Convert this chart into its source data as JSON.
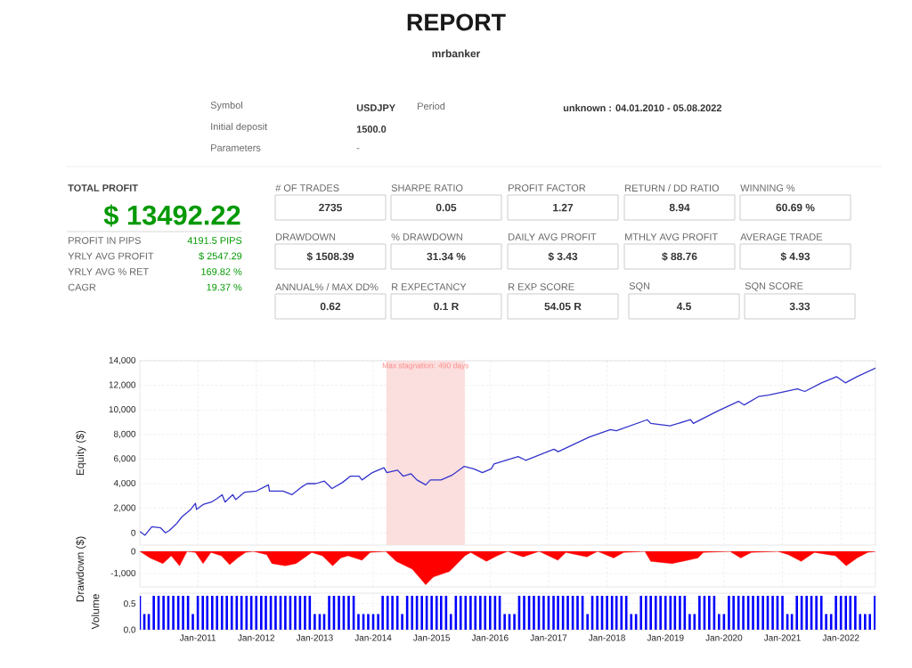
{
  "chart_data": [
    {
      "type": "other",
      "title": "REPORT",
      "subtitle": "mrbanker",
      "annotations": [
        "Symbol",
        "USDJPY",
        "Period",
        "unknown : 04.01.2010 - 05.08.2022",
        "Initial deposit",
        "1500.0",
        "Parameters",
        "-",
        "TOTAL PROFIT",
        "$ 13492.22",
        "PROFIT IN PIPS",
        "4191.5 PIPS",
        "YRLY AVG PROFIT",
        "$ 2547.29",
        "YRLY AVG % RET",
        "169.82 %",
        "CAGR",
        "19.37 %",
        "# OF TRADES",
        "2735",
        "SHARPE RATIO",
        "0.05",
        "PROFIT FACTOR",
        "1.27",
        "RETURN / DD RATIO",
        "8.94",
        "WINNING %",
        "60.69 %",
        "DRAWDOWN",
        "$ 1508.39",
        "% DRAWDOWN",
        "31.34 %",
        "DAILY AVG PROFIT",
        "$ 3.43",
        "MTHLY AVG PROFIT",
        "$ 88.76",
        "AVERAGE TRADE",
        "$ 4.93",
        "ANNUAL% / MAX DD%",
        "0.62",
        "R EXPECTANCY",
        "0.1 R",
        "R EXP SCORE",
        "54.05 R",
        "SQN",
        "4.5",
        "SQN SCORE",
        "3.33"
      ]
    },
    {
      "type": "line",
      "ylabel": "Equity ($)",
      "color": "#3333cc",
      "grid": true,
      "tick_labels": "y",
      "xlim": [
        "2010-01-04",
        "2022-08-05"
      ],
      "ylim": [
        -1000,
        14000
      ],
      "xticks": [
        {
          "value": "2011-01-01",
          "label": null
        },
        {
          "value": "2012-01-01",
          "label": null
        },
        {
          "value": "2013-01-01",
          "label": null
        },
        {
          "value": "2014-01-01",
          "label": null
        },
        {
          "value": "2015-01-01",
          "label": null
        },
        {
          "value": "2016-01-01",
          "label": null
        },
        {
          "value": "2017-01-01",
          "label": null
        },
        {
          "value": "2018-01-01",
          "label": null
        },
        {
          "value": "2019-01-01",
          "label": null
        },
        {
          "value": "2020-01-01",
          "label": null
        },
        {
          "value": "2021-01-01",
          "label": null
        },
        {
          "value": "2022-01-01",
          "label": null
        }
      ],
      "yticks": [
        0,
        {
          "value": 2000,
          "label": "2,000"
        },
        {
          "value": 4000,
          "label": "4,000"
        },
        {
          "value": 6000,
          "label": "6,000"
        },
        {
          "value": 8000,
          "label": "8,000"
        },
        {
          "value": 10000,
          "label": "10,000"
        },
        {
          "value": 12000,
          "label": "12,000"
        },
        {
          "value": 14000,
          "label": "14,000"
        }
      ],
      "bands": [
        {
          "axis": "x",
          "from": "2014-03-24",
          "to": "2015-07-27",
          "label": "Max stagnation: 490 days",
          "color": "#fbdede"
        }
      ],
      "x": [
        "2010-01-04",
        "2010-02-05",
        "2010-03-20",
        "2010-05-14",
        "2010-06-13",
        "2010-07-08",
        "2010-08-18",
        "2010-09-24",
        "2010-11-18",
        "2010-12-17",
        "2010-12-24",
        "2011-02-03",
        "2011-03-27",
        "2011-05-03",
        "2011-06-02",
        "2011-06-20",
        "2011-08-07",
        "2011-08-25",
        "2011-10-19",
        "2012-01-02",
        "2012-03-17",
        "2012-03-24",
        "2012-06-17",
        "2012-08-11",
        "2012-10-08",
        "2012-11-14",
        "2013-01-08",
        "2013-03-02",
        "2013-04-19",
        "2013-06-24",
        "2013-08-11",
        "2013-10-05",
        "2013-10-23",
        "2013-12-27",
        "2014-03-09",
        "2014-03-27",
        "2014-06-02",
        "2014-07-08",
        "2014-08-25",
        "2014-10-01",
        "2014-11-25",
        "2014-12-24",
        "2015-02-28",
        "2015-05-10",
        "2015-07-22",
        "2015-09-20",
        "2015-11-14",
        "2016-01-08",
        "2016-01-26",
        "2016-06-24",
        "2016-08-11",
        "2017-02-03",
        "2017-03-02",
        "2017-09-13",
        "2018-01-22",
        "2018-02-28",
        "2018-09-09",
        "2018-10-01",
        "2019-01-29",
        "2019-06-06",
        "2019-06-24",
        "2019-11-21",
        "2020-04-01",
        "2020-05-07",
        "2020-08-07",
        "2020-10-05",
        "2021-04-04",
        "2021-05-21",
        "2021-09-02",
        "2021-12-06",
        "2022-01-29",
        "2022-04-12",
        "2022-08-05"
      ],
      "values": [
        100,
        -200,
        500,
        400,
        0,
        200,
        700,
        1300,
        1900,
        2400,
        1900,
        2300,
        2500,
        2800,
        3100,
        2500,
        3100,
        2700,
        3300,
        3400,
        3900,
        3400,
        3400,
        3100,
        3700,
        4000,
        4000,
        4200,
        3600,
        4100,
        4600,
        4600,
        4300,
        4900,
        5300,
        4900,
        5100,
        4600,
        4800,
        4300,
        3900,
        4300,
        4300,
        4700,
        5400,
        5200,
        4900,
        5200,
        5600,
        6200,
        5900,
        6800,
        6600,
        7800,
        8400,
        8300,
        9200,
        8900,
        8700,
        9200,
        8900,
        9900,
        10700,
        10400,
        11100,
        11200,
        11700,
        11500,
        12200,
        12700,
        12200,
        12700,
        13400
      ]
    },
    {
      "type": "area",
      "ylabel": "Drawdown ($)",
      "color": "#ff0000",
      "grid": true,
      "tick_labels": "y",
      "xlim": [
        "2010-01-04",
        "2022-08-05"
      ],
      "ylim": [
        -1600,
        0
      ],
      "xticks": [
        {
          "value": "2011-01-01",
          "label": null
        },
        {
          "value": "2012-01-01",
          "label": null
        },
        {
          "value": "2013-01-01",
          "label": null
        },
        {
          "value": "2014-01-01",
          "label": null
        },
        {
          "value": "2015-01-01",
          "label": null
        },
        {
          "value": "2016-01-01",
          "label": null
        },
        {
          "value": "2017-01-01",
          "label": null
        },
        {
          "value": "2018-01-01",
          "label": null
        },
        {
          "value": "2019-01-01",
          "label": null
        },
        {
          "value": "2020-01-01",
          "label": null
        },
        {
          "value": "2021-01-01",
          "label": null
        },
        {
          "value": "2022-01-01",
          "label": null
        }
      ],
      "yticks": [
        {
          "value": -1000,
          "label": "-1,000"
        },
        0
      ],
      "x": [
        "2010-01-04",
        "2010-03-09",
        "2010-05-28",
        "2010-07-19",
        "2010-09-09",
        "2010-10-26",
        "2010-12-17",
        "2011-02-03",
        "2011-03-24",
        "2011-05-28",
        "2011-07-19",
        "2011-09-06",
        "2011-10-26",
        "2011-12-13",
        "2012-03-06",
        "2012-04-08",
        "2012-07-01",
        "2012-09-06",
        "2012-10-26",
        "2012-12-13",
        "2013-02-18",
        "2013-04-23",
        "2013-06-13",
        "2013-07-28",
        "2013-10-23",
        "2013-12-13",
        "2014-03-20",
        "2014-05-25",
        "2014-09-02",
        "2014-11-25",
        "2015-01-12",
        "2015-04-23",
        "2015-07-28",
        "2015-09-02",
        "2015-12-09",
        "2016-02-14",
        "2016-04-19",
        "2016-07-26",
        "2016-11-03",
        "2017-02-28",
        "2017-04-19",
        "2017-08-28",
        "2017-11-03",
        "2018-02-11",
        "2018-04-15",
        "2018-08-25",
        "2018-10-01",
        "2019-02-11",
        "2019-07-22",
        "2019-08-25",
        "2020-02-07",
        "2020-04-15",
        "2020-06-20",
        "2020-12-02",
        "2021-02-07",
        "2021-04-28",
        "2021-07-19",
        "2021-11-28",
        "2022-02-03",
        "2022-04-12",
        "2022-06-17",
        "2022-08-05"
      ],
      "values": [
        0,
        -300,
        -550,
        -200,
        -650,
        0,
        -50,
        -550,
        -50,
        -200,
        -600,
        -300,
        -50,
        0,
        -150,
        -550,
        -650,
        -550,
        -300,
        -50,
        -200,
        -650,
        -300,
        -200,
        -400,
        -50,
        0,
        -450,
        -800,
        -1500,
        -1150,
        -900,
        -200,
        -50,
        -450,
        -200,
        0,
        -250,
        0,
        -400,
        -50,
        -250,
        0,
        -300,
        -50,
        0,
        -450,
        -550,
        -300,
        -50,
        0,
        -300,
        -50,
        0,
        -150,
        -450,
        -50,
        -200,
        -650,
        -300,
        -50,
        0
      ]
    },
    {
      "type": "bar",
      "ylabel": "Volume",
      "color": "#0000ff",
      "grid": true,
      "xlim": [
        "2010-01-04",
        "2022-08-05"
      ],
      "ylim": [
        0,
        0.7
      ],
      "xticks": [
        {
          "value": "2011-01-01",
          "label": "Jan-2011"
        },
        {
          "value": "2012-01-01",
          "label": "Jan-2012"
        },
        {
          "value": "2013-01-01",
          "label": "Jan-2013"
        },
        {
          "value": "2014-01-01",
          "label": "Jan-2014"
        },
        {
          "value": "2015-01-01",
          "label": "Jan-2015"
        },
        {
          "value": "2016-01-01",
          "label": "Jan-2016"
        },
        {
          "value": "2017-01-01",
          "label": "Jan-2017"
        },
        {
          "value": "2018-01-01",
          "label": "Jan-2018"
        },
        {
          "value": "2019-01-01",
          "label": "Jan-2019"
        },
        {
          "value": "2020-01-01",
          "label": "Jan-2020"
        },
        {
          "value": "2021-01-01",
          "label": "Jan-2021"
        },
        {
          "value": "2022-01-01",
          "label": "Jan-2022"
        }
      ],
      "yticks": [
        {
          "value": 0,
          "label": "0.0"
        },
        0.5
      ],
      "x": [
        "2010-01-04",
        "2010-02",
        "2010-03",
        "2010-04",
        "2010-05",
        "2010-06",
        "2010-07",
        "2010-08",
        "2010-09",
        "2010-10",
        "2010-11",
        "2010-12",
        "2011-01",
        "2011-02",
        "2011-03",
        "2011-04",
        "2011-05",
        "2011-06",
        "2011-07",
        "2011-08",
        "2011-09",
        "2011-10",
        "2011-11",
        "2011-12",
        "2012-01",
        "2012-02",
        "2012-03",
        "2012-04",
        "2012-05",
        "2012-06",
        "2012-07",
        "2012-08",
        "2012-09",
        "2012-10",
        "2012-11",
        "2012-12",
        "2013-01",
        "2013-02",
        "2013-03",
        "2013-04",
        "2013-05",
        "2013-06",
        "2013-07",
        "2013-08",
        "2013-09",
        "2013-10",
        "2013-11",
        "2013-12",
        "2014-01",
        "2014-02",
        "2014-03",
        "2014-04",
        "2014-05",
        "2014-06",
        "2014-07",
        "2014-08",
        "2014-09",
        "2014-10",
        "2014-11",
        "2014-12",
        "2015-01",
        "2015-02",
        "2015-03",
        "2015-04",
        "2015-05",
        "2015-06",
        "2015-07",
        "2015-08",
        "2015-09",
        "2015-10",
        "2015-11",
        "2015-12",
        "2016-01",
        "2016-02",
        "2016-03",
        "2016-04",
        "2016-05",
        "2016-06",
        "2016-07",
        "2016-08",
        "2016-09",
        "2016-10",
        "2016-11",
        "2016-12",
        "2017-01",
        "2017-02",
        "2017-03",
        "2017-04",
        "2017-05",
        "2017-06",
        "2017-07",
        "2017-08",
        "2017-09",
        "2017-10",
        "2017-11",
        "2017-12",
        "2018-01",
        "2018-02",
        "2018-03",
        "2018-04",
        "2018-05",
        "2018-06",
        "2018-07",
        "2018-08",
        "2018-09",
        "2018-10",
        "2018-11",
        "2018-12",
        "2019-01",
        "2019-02",
        "2019-03",
        "2019-04",
        "2019-05",
        "2019-06",
        "2019-07",
        "2019-08",
        "2019-09",
        "2019-10",
        "2019-11",
        "2019-12",
        "2020-01",
        "2020-02",
        "2020-03",
        "2020-04",
        "2020-05",
        "2020-06",
        "2020-07",
        "2020-08",
        "2020-09",
        "2020-10",
        "2020-11",
        "2020-12",
        "2021-01",
        "2021-02",
        "2021-03",
        "2021-04",
        "2021-05",
        "2021-06",
        "2021-07",
        "2021-08",
        "2021-09",
        "2021-10",
        "2021-11",
        "2021-12",
        "2022-01",
        "2022-02",
        "2022-03",
        "2022-04",
        "2022-05",
        "2022-06",
        "2022-07",
        "2022-08"
      ],
      "values": [
        0.65,
        0.3,
        0.3,
        0.65,
        0.65,
        0.65,
        0.65,
        0.65,
        0.65,
        0.65,
        0.65,
        0.3,
        0.65,
        0.65,
        0.65,
        0.65,
        0.65,
        0.65,
        0.65,
        0.65,
        0.65,
        0.65,
        0.65,
        0.65,
        0.65,
        0.65,
        0.65,
        0.65,
        0.65,
        0.65,
        0.65,
        0.65,
        0.65,
        0.65,
        0.65,
        0.65,
        0.3,
        0.3,
        0.3,
        0.65,
        0.65,
        0.65,
        0.65,
        0.65,
        0.65,
        0.3,
        0.3,
        0.3,
        0.3,
        0.3,
        0.65,
        0.65,
        0.65,
        0.65,
        0.3,
        0.65,
        0.65,
        0.65,
        0.65,
        0.65,
        0.65,
        0.65,
        0.65,
        0.65,
        0.3,
        0.65,
        0.65,
        0.65,
        0.65,
        0.65,
        0.65,
        0.65,
        0.65,
        0.65,
        0.65,
        0.3,
        0.3,
        0.3,
        0.65,
        0.65,
        0.65,
        0.65,
        0.65,
        0.65,
        0.65,
        0.65,
        0.65,
        0.65,
        0.65,
        0.65,
        0.65,
        0.65,
        0.3,
        0.65,
        0.65,
        0.65,
        0.65,
        0.65,
        0.65,
        0.65,
        0.65,
        0.3,
        0.3,
        0.65,
        0.65,
        0.65,
        0.65,
        0.65,
        0.65,
        0.65,
        0.65,
        0.65,
        0.65,
        0.3,
        0.3,
        0.65,
        0.65,
        0.65,
        0.65,
        0.3,
        0.3,
        0.65,
        0.65,
        0.65,
        0.65,
        0.65,
        0.65,
        0.65,
        0.65,
        0.65,
        0.65,
        0.65,
        0.65,
        0.3,
        0.3,
        0.65,
        0.65,
        0.65,
        0.65,
        0.65,
        0.65,
        0.3,
        0.3,
        0.65,
        0.65,
        0.65,
        0.65,
        0.65,
        0.3,
        0.3,
        0.3,
        0.65
      ]
    }
  ]
}
